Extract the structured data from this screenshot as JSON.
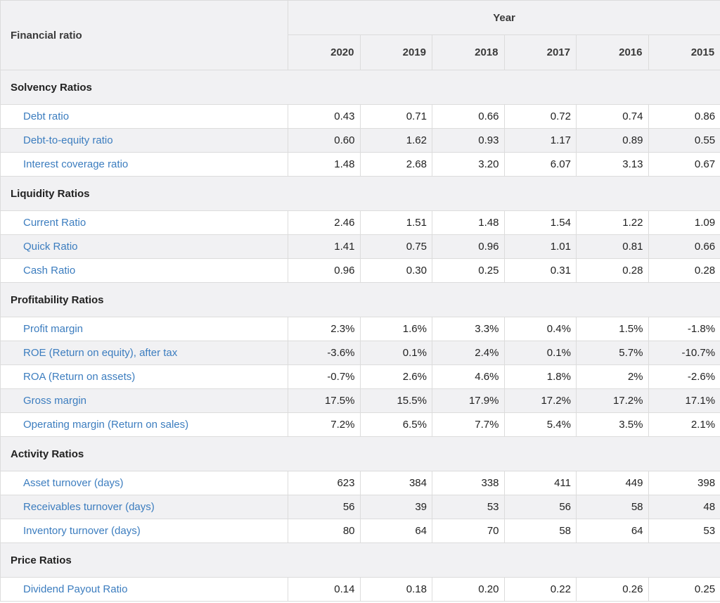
{
  "header": {
    "label": "Financial ratio",
    "group": "Year",
    "years": [
      "2020",
      "2019",
      "2018",
      "2017",
      "2016",
      "2015"
    ]
  },
  "sections": [
    {
      "title": "Solvency Ratios",
      "rows": [
        {
          "name": "Debt ratio",
          "values": [
            "0.43",
            "0.71",
            "0.66",
            "0.72",
            "0.74",
            "0.86"
          ]
        },
        {
          "name": "Debt-to-equity ratio",
          "values": [
            "0.60",
            "1.62",
            "0.93",
            "1.17",
            "0.89",
            "0.55"
          ]
        },
        {
          "name": "Interest coverage ratio",
          "values": [
            "1.48",
            "2.68",
            "3.20",
            "6.07",
            "3.13",
            "0.67"
          ]
        }
      ]
    },
    {
      "title": "Liquidity Ratios",
      "rows": [
        {
          "name": "Current Ratio",
          "values": [
            "2.46",
            "1.51",
            "1.48",
            "1.54",
            "1.22",
            "1.09"
          ]
        },
        {
          "name": "Quick Ratio",
          "values": [
            "1.41",
            "0.75",
            "0.96",
            "1.01",
            "0.81",
            "0.66"
          ]
        },
        {
          "name": "Cash Ratio",
          "values": [
            "0.96",
            "0.30",
            "0.25",
            "0.31",
            "0.28",
            "0.28"
          ]
        }
      ]
    },
    {
      "title": "Profitability Ratios",
      "rows": [
        {
          "name": "Profit margin",
          "values": [
            "2.3%",
            "1.6%",
            "3.3%",
            "0.4%",
            "1.5%",
            "-1.8%"
          ]
        },
        {
          "name": "ROE (Return on equity), after tax",
          "values": [
            "-3.6%",
            "0.1%",
            "2.4%",
            "0.1%",
            "5.7%",
            "-10.7%"
          ]
        },
        {
          "name": "ROA (Return on assets)",
          "values": [
            "-0.7%",
            "2.6%",
            "4.6%",
            "1.8%",
            "2%",
            "-2.6%"
          ]
        },
        {
          "name": "Gross margin",
          "values": [
            "17.5%",
            "15.5%",
            "17.9%",
            "17.2%",
            "17.2%",
            "17.1%"
          ]
        },
        {
          "name": "Operating margin (Return on sales)",
          "values": [
            "7.2%",
            "6.5%",
            "7.7%",
            "5.4%",
            "3.5%",
            "2.1%"
          ]
        }
      ]
    },
    {
      "title": "Activity Ratios",
      "rows": [
        {
          "name": "Asset turnover (days)",
          "values": [
            "623",
            "384",
            "338",
            "411",
            "449",
            "398"
          ]
        },
        {
          "name": "Receivables turnover (days)",
          "values": [
            "56",
            "39",
            "53",
            "56",
            "58",
            "48"
          ]
        },
        {
          "name": "Inventory turnover (days)",
          "values": [
            "80",
            "64",
            "70",
            "58",
            "64",
            "53"
          ]
        }
      ]
    },
    {
      "title": "Price Ratios",
      "rows": [
        {
          "name": "Dividend Payout Ratio",
          "values": [
            "0.14",
            "0.18",
            "0.20",
            "0.22",
            "0.26",
            "0.25"
          ]
        }
      ]
    }
  ]
}
